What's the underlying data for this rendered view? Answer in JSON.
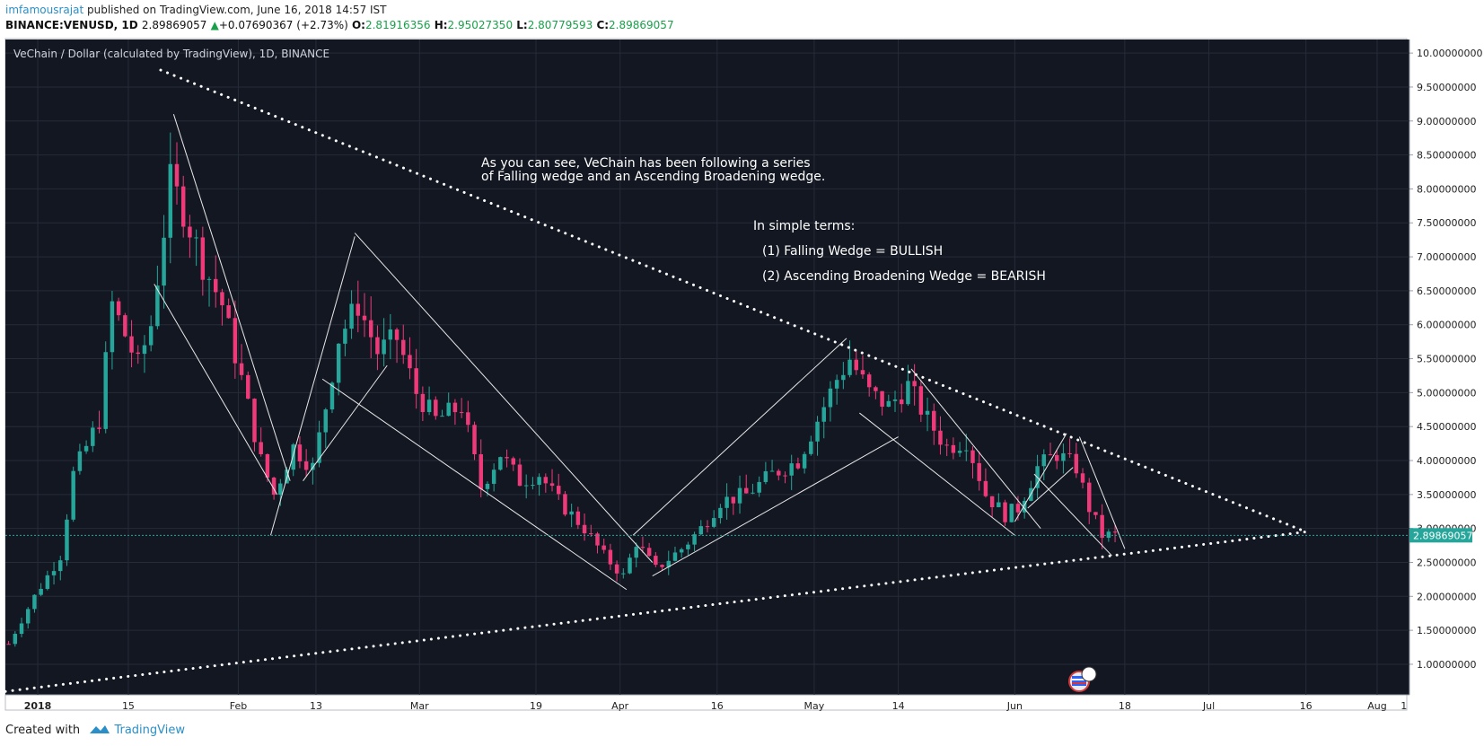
{
  "header": {
    "author": "imfamousrajat",
    "published_text": "published on TradingView.com, June 16, 2018 14:57 IST",
    "symbol": "BINANCE:VENUSD, 1D",
    "last_price": "2.89869057",
    "change_arrow": "▲",
    "change": "+0.07690367 (+2.73%)",
    "open_label": "O:",
    "open": "2.81916356",
    "high_label": "H:",
    "high": "2.95027350",
    "low_label": "L:",
    "low": "2.80779593",
    "close_label": "C:",
    "close": "2.89869057"
  },
  "footer": {
    "created_with": "Created with",
    "brand": "TradingView"
  },
  "chart_data": {
    "type": "candlestick",
    "title": "VeChain / Dollar (calculated by TradingView), 1D, BINANCE",
    "x_tick_labels": [
      "2018",
      "15",
      "Feb",
      "13",
      "Mar",
      "19",
      "Apr",
      "16",
      "May",
      "14",
      "Jun",
      "18",
      "Jul",
      "16",
      "Aug",
      "1"
    ],
    "y_tick_labels": [
      "10.00000000",
      "9.50000000",
      "9.00000000",
      "8.50000000",
      "8.00000000",
      "7.50000000",
      "7.00000000",
      "6.50000000",
      "6.00000000",
      "5.50000000",
      "5.00000000",
      "4.50000000",
      "4.00000000",
      "3.50000000",
      "3.00000000",
      "2.50000000",
      "2.00000000",
      "1.50000000",
      "1.00000000"
    ],
    "ylim": [
      0.55,
      10.2
    ],
    "xlim": [
      "2017-12-27",
      "2018-08-01"
    ],
    "current_price": 2.89869057,
    "current_price_label": "2.89869057",
    "annotations": {
      "note1_line1": "As you can see, VeChain has been following a series",
      "note1_line2": "of Falling wedge and an Ascending Broadening wedge.",
      "note2_title": "In simple terms:",
      "note2_item1": "(1) Falling Wedge = BULLISH",
      "note2_item2": "(2) Ascending Broadening Wedge = BEARISH"
    },
    "price_path": [
      [
        "2017-12-27",
        1.3
      ],
      [
        "2017-12-31",
        2.0
      ],
      [
        "2018-01-04",
        2.6
      ],
      [
        "2018-01-06",
        3.8
      ],
      [
        "2018-01-10",
        4.6
      ],
      [
        "2018-01-12",
        6.3
      ],
      [
        "2018-01-16",
        5.4
      ],
      [
        "2018-01-18",
        6.0
      ],
      [
        "2018-01-21",
        8.1
      ],
      [
        "2018-01-23",
        7.7
      ],
      [
        "2018-01-26",
        6.9
      ],
      [
        "2018-01-29",
        6.3
      ],
      [
        "2018-02-01",
        5.2
      ],
      [
        "2018-02-04",
        4.0
      ],
      [
        "2018-02-06",
        3.5
      ],
      [
        "2018-02-09",
        4.2
      ],
      [
        "2018-02-12",
        3.9
      ],
      [
        "2018-02-14",
        4.8
      ],
      [
        "2018-02-16",
        5.8
      ],
      [
        "2018-02-19",
        6.3
      ],
      [
        "2018-02-22",
        5.6
      ],
      [
        "2018-02-25",
        5.8
      ],
      [
        "2018-02-28",
        5.0
      ],
      [
        "2018-03-03",
        4.6
      ],
      [
        "2018-03-07",
        4.8
      ],
      [
        "2018-03-10",
        3.6
      ],
      [
        "2018-03-13",
        4.1
      ],
      [
        "2018-03-16",
        3.7
      ],
      [
        "2018-03-19",
        3.8
      ],
      [
        "2018-03-22",
        3.4
      ],
      [
        "2018-03-26",
        3.0
      ],
      [
        "2018-03-29",
        2.6
      ],
      [
        "2018-04-01",
        2.3
      ],
      [
        "2018-04-03",
        2.8
      ],
      [
        "2018-04-06",
        2.4
      ],
      [
        "2018-04-10",
        2.7
      ],
      [
        "2018-04-13",
        3.0
      ],
      [
        "2018-04-16",
        3.4
      ],
      [
        "2018-04-20",
        3.5
      ],
      [
        "2018-04-24",
        3.8
      ],
      [
        "2018-04-28",
        4.0
      ],
      [
        "2018-05-01",
        4.6
      ],
      [
        "2018-05-04",
        5.2
      ],
      [
        "2018-05-06",
        5.5
      ],
      [
        "2018-05-09",
        5.0
      ],
      [
        "2018-05-12",
        4.8
      ],
      [
        "2018-05-15",
        5.1
      ],
      [
        "2018-05-18",
        4.6
      ],
      [
        "2018-05-21",
        4.2
      ],
      [
        "2018-05-24",
        4.3
      ],
      [
        "2018-05-27",
        3.5
      ],
      [
        "2018-05-30",
        3.2
      ],
      [
        "2018-06-01",
        3.3
      ],
      [
        "2018-06-04",
        3.9
      ],
      [
        "2018-06-07",
        4.1
      ],
      [
        "2018-06-10",
        3.9
      ],
      [
        "2018-06-12",
        3.3
      ],
      [
        "2018-06-14",
        2.9
      ],
      [
        "2018-06-16",
        2.9
      ]
    ]
  }
}
